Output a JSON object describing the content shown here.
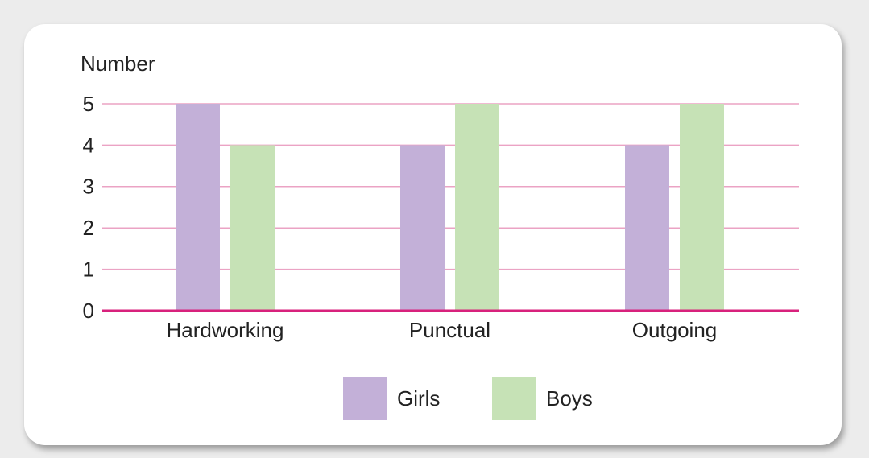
{
  "chart_data": {
    "type": "bar",
    "y_label": "Number",
    "categories": [
      "Hardworking",
      "Punctual",
      "Outgoing"
    ],
    "series": [
      {
        "name": "Girls",
        "color": "#c3b0d8",
        "values": [
          5,
          4,
          4
        ]
      },
      {
        "name": "Boys",
        "color": "#c6e2b6",
        "values": [
          4,
          5,
          5
        ]
      }
    ],
    "ylim": [
      0,
      5
    ],
    "yticks": [
      0,
      1,
      2,
      3,
      4,
      5
    ],
    "grid": true,
    "grid_color": "#eba3c4",
    "axis_color": "#d8217c",
    "legend": "bottom"
  }
}
